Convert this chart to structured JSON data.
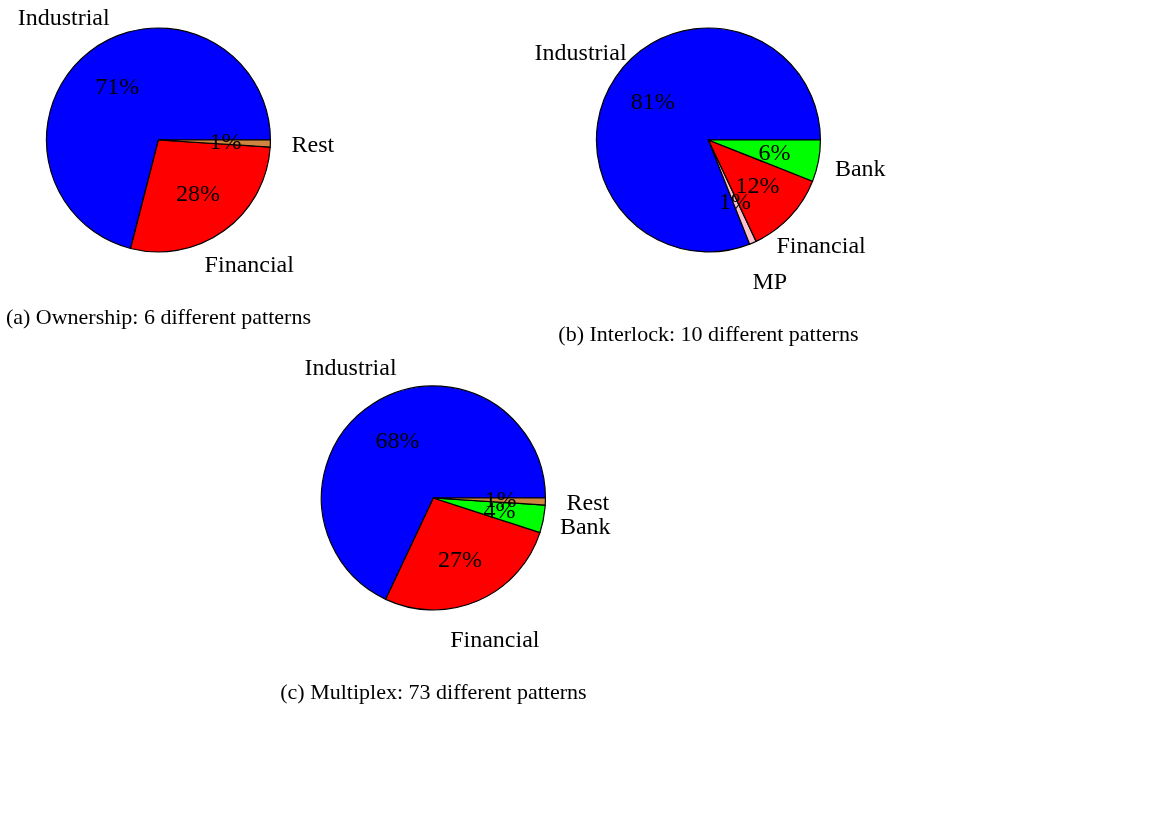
{
  "chart_data": [
    {
      "type": "pie",
      "title": "(a) Ownership: 6 different patterns",
      "categories": [
        "Industrial",
        "Financial",
        "Rest"
      ],
      "values": [
        71,
        28,
        1
      ],
      "colors": [
        "#0000ff",
        "#ff0000",
        "#cd853f"
      ],
      "value_labels": [
        "71%",
        "28%",
        "1%"
      ]
    },
    {
      "type": "pie",
      "title": "(b) Interlock: 10 different patterns",
      "categories": [
        "Industrial",
        "MP",
        "Financial",
        "Bank"
      ],
      "values": [
        81,
        1,
        12,
        6
      ],
      "colors": [
        "#0000ff",
        "#ffc0cb",
        "#ff0000",
        "#00ff00"
      ],
      "value_labels": [
        "81%",
        "1%",
        "12%",
        "6%"
      ]
    },
    {
      "type": "pie",
      "title": "(c) Multiplex: 73 different patterns",
      "categories": [
        "Industrial",
        "Financial",
        "Bank",
        "Rest"
      ],
      "values": [
        68,
        27,
        4,
        1
      ],
      "colors": [
        "#0000ff",
        "#ff0000",
        "#00ff00",
        "#cd853f"
      ],
      "value_labels": [
        "68%",
        "27%",
        "4%",
        "1%"
      ]
    }
  ]
}
